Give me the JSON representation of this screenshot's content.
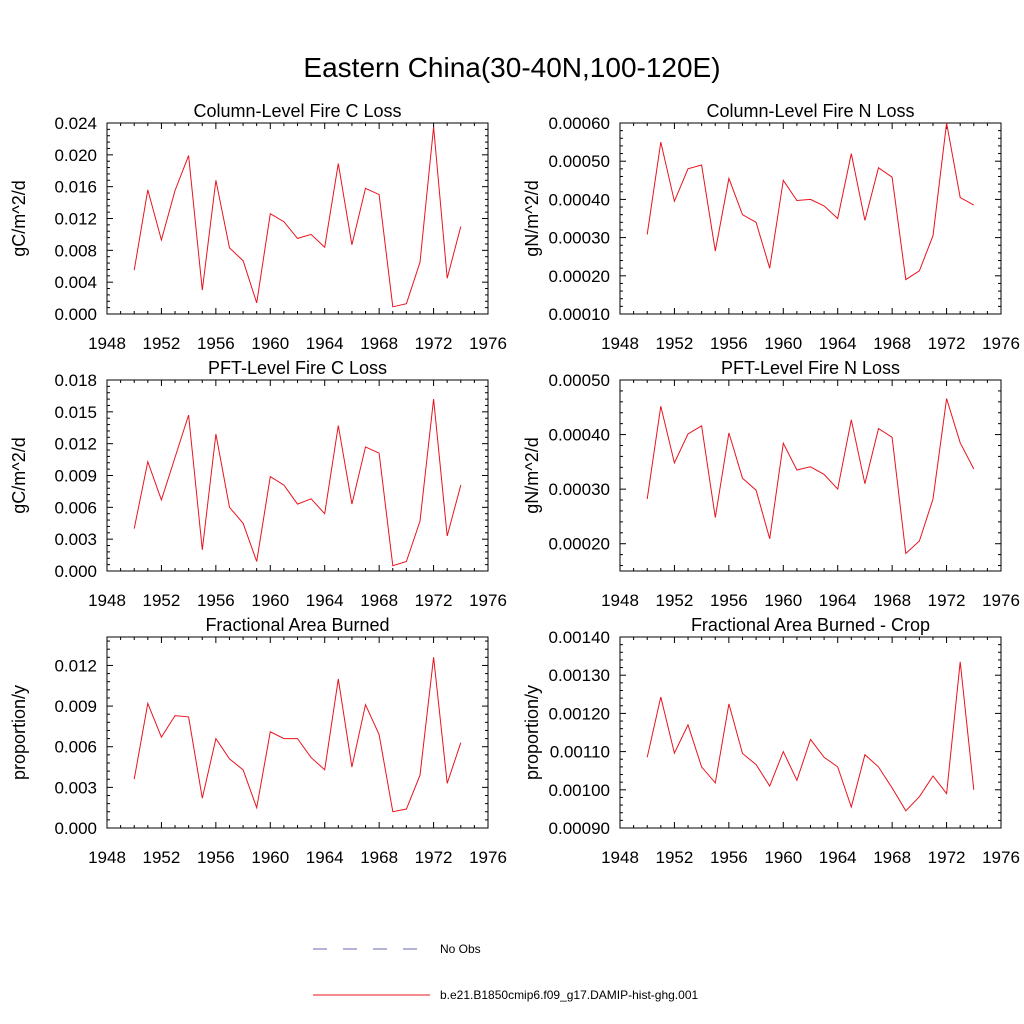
{
  "figure": {
    "title": "Eastern China(30-40N,100-120E)",
    "legend": [
      {
        "label": "No Obs",
        "color": "#6a6ab0",
        "style": "dashed"
      },
      {
        "label": "b.e21.B1850cmip6.f09_g17.DAMIP-hist-ghg.001",
        "color": "#e8141e",
        "style": "solid"
      }
    ]
  },
  "chart_data": [
    {
      "type": "line",
      "title": "Column-Level Fire C Loss",
      "ylabel": "gC/m^2/d",
      "xlim": [
        1948,
        1976
      ],
      "xticks": [
        "1948",
        "1952",
        "1956",
        "1960",
        "1964",
        "1968",
        "1972",
        "1976"
      ],
      "ylim": [
        0,
        0.024
      ],
      "yticks": [
        "0.000",
        "0.004",
        "0.008",
        "0.012",
        "0.016",
        "0.020",
        "0.024"
      ],
      "series": [
        {
          "color": "#e8141e",
          "x": [
            1950,
            1951,
            1952,
            1953,
            1954,
            1955,
            1956,
            1957,
            1958,
            1959,
            1960,
            1961,
            1962,
            1963,
            1964,
            1965,
            1966,
            1967,
            1968,
            1969,
            1970,
            1971,
            1972,
            1973,
            1974
          ],
          "values": [
            0.0055,
            0.0156,
            0.0093,
            0.0155,
            0.0199,
            0.003,
            0.0168,
            0.0083,
            0.0067,
            0.0014,
            0.0126,
            0.0116,
            0.0095,
            0.01,
            0.0084,
            0.0189,
            0.0087,
            0.0158,
            0.015,
            0.0009,
            0.0013,
            0.0065,
            0.0235,
            0.0045,
            0.011
          ]
        }
      ]
    },
    {
      "type": "line",
      "title": "Column-Level Fire N Loss",
      "ylabel": "gN/m^2/d",
      "xlim": [
        1948,
        1976
      ],
      "xticks": [
        "1948",
        "1952",
        "1956",
        "1960",
        "1964",
        "1968",
        "1972",
        "1976"
      ],
      "ylim": [
        0.0001,
        0.0006
      ],
      "yticks": [
        "0.00010",
        "0.00020",
        "0.00030",
        "0.00040",
        "0.00050",
        "0.00060"
      ],
      "series": [
        {
          "color": "#e8141e",
          "x": [
            1950,
            1951,
            1952,
            1953,
            1954,
            1955,
            1956,
            1957,
            1958,
            1959,
            1960,
            1961,
            1962,
            1963,
            1964,
            1965,
            1966,
            1967,
            1968,
            1969,
            1970,
            1971,
            1972,
            1973,
            1974
          ],
          "values": [
            0.000308,
            0.00055,
            0.000395,
            0.00048,
            0.00049,
            0.000265,
            0.000455,
            0.00036,
            0.00034,
            0.00022,
            0.00045,
            0.000397,
            0.0004,
            0.000383,
            0.00035,
            0.00052,
            0.000345,
            0.000483,
            0.000458,
            0.00019,
            0.000213,
            0.000305,
            0.0006,
            0.000405,
            0.000385
          ]
        }
      ]
    },
    {
      "type": "line",
      "title": "PFT-Level Fire C Loss",
      "ylabel": "gC/m^2/d",
      "xlim": [
        1948,
        1976
      ],
      "xticks": [
        "1948",
        "1952",
        "1956",
        "1960",
        "1964",
        "1968",
        "1972",
        "1976"
      ],
      "ylim": [
        0,
        0.018
      ],
      "yticks": [
        "0.000",
        "0.003",
        "0.006",
        "0.009",
        "0.012",
        "0.015",
        "0.018"
      ],
      "series": [
        {
          "color": "#e8141e",
          "x": [
            1950,
            1951,
            1952,
            1953,
            1954,
            1955,
            1956,
            1957,
            1958,
            1959,
            1960,
            1961,
            1962,
            1963,
            1964,
            1965,
            1966,
            1967,
            1968,
            1969,
            1970,
            1971,
            1972,
            1973,
            1974
          ],
          "values": [
            0.004,
            0.0103,
            0.0067,
            0.0107,
            0.0147,
            0.002,
            0.0129,
            0.006,
            0.0045,
            0.0009,
            0.0089,
            0.0081,
            0.0063,
            0.0068,
            0.0054,
            0.0137,
            0.0063,
            0.0117,
            0.0111,
            0.0005,
            0.0009,
            0.0047,
            0.0162,
            0.0033,
            0.0081
          ]
        }
      ]
    },
    {
      "type": "line",
      "title": "PFT-Level Fire N Loss",
      "ylabel": "gN/m^2/d",
      "xlim": [
        1948,
        1976
      ],
      "xticks": [
        "1948",
        "1952",
        "1956",
        "1960",
        "1964",
        "1968",
        "1972",
        "1976"
      ],
      "ylim": [
        0.00015,
        0.0005
      ],
      "yticks": [
        "0.00020",
        "0.00030",
        "0.00040",
        "0.00050"
      ],
      "series": [
        {
          "color": "#e8141e",
          "x": [
            1950,
            1951,
            1952,
            1953,
            1954,
            1955,
            1956,
            1957,
            1958,
            1959,
            1960,
            1961,
            1962,
            1963,
            1964,
            1965,
            1966,
            1967,
            1968,
            1969,
            1970,
            1971,
            1972,
            1973,
            1974
          ],
          "values": [
            0.000282,
            0.000452,
            0.000348,
            0.000401,
            0.000416,
            0.000248,
            0.000403,
            0.00032,
            0.000298,
            0.000209,
            0.000384,
            0.000335,
            0.000341,
            0.000327,
            0.0003,
            0.000427,
            0.00031,
            0.000411,
            0.000395,
            0.000182,
            0.000205,
            0.000282,
            0.000466,
            0.000385,
            0.000337
          ]
        }
      ]
    },
    {
      "type": "line",
      "title": "Fractional Area Burned",
      "ylabel": "proportion/y",
      "xlim": [
        1948,
        1976
      ],
      "xticks": [
        "1948",
        "1952",
        "1956",
        "1960",
        "1964",
        "1968",
        "1972",
        "1976"
      ],
      "ylim": [
        0,
        0.0141
      ],
      "yticks": [
        "0.000",
        "0.003",
        "0.006",
        "0.009",
        "0.012"
      ],
      "ytickvalues": [
        0,
        0.003,
        0.006,
        0.009,
        0.012
      ],
      "series": [
        {
          "color": "#e8141e",
          "x": [
            1950,
            1951,
            1952,
            1953,
            1954,
            1955,
            1956,
            1957,
            1958,
            1959,
            1960,
            1961,
            1962,
            1963,
            1964,
            1965,
            1966,
            1967,
            1968,
            1969,
            1970,
            1971,
            1972,
            1973,
            1974
          ],
          "values": [
            0.0036,
            0.0092,
            0.0067,
            0.0083,
            0.0082,
            0.0022,
            0.0066,
            0.0051,
            0.0043,
            0.0015,
            0.0071,
            0.0066,
            0.0066,
            0.0052,
            0.0043,
            0.011,
            0.0045,
            0.0091,
            0.0069,
            0.0012,
            0.0014,
            0.0039,
            0.0126,
            0.0033,
            0.0063
          ]
        }
      ]
    },
    {
      "type": "line",
      "title": "Fractional Area Burned - Crop",
      "ylabel": "proportion/y",
      "xlim": [
        1948,
        1976
      ],
      "xticks": [
        "1948",
        "1952",
        "1956",
        "1960",
        "1964",
        "1968",
        "1972",
        "1976"
      ],
      "ylim": [
        0.0009,
        0.0014
      ],
      "yticks": [
        "0.00090",
        "0.00100",
        "0.00110",
        "0.00120",
        "0.00130",
        "0.00140"
      ],
      "series": [
        {
          "color": "#e8141e",
          "x": [
            1950,
            1951,
            1952,
            1953,
            1954,
            1955,
            1956,
            1957,
            1958,
            1959,
            1960,
            1961,
            1962,
            1963,
            1964,
            1965,
            1966,
            1967,
            1968,
            1969,
            1970,
            1971,
            1972,
            1973,
            1974
          ],
          "values": [
            0.001085,
            0.001243,
            0.001096,
            0.00117,
            0.00106,
            0.001018,
            0.001225,
            0.001095,
            0.001066,
            0.00101,
            0.0011,
            0.001025,
            0.001132,
            0.001085,
            0.00106,
            0.000955,
            0.001092,
            0.00106,
            0.001005,
            0.000945,
            0.000982,
            0.001036,
            0.00099,
            0.001335,
            0.001
          ]
        }
      ]
    }
  ]
}
